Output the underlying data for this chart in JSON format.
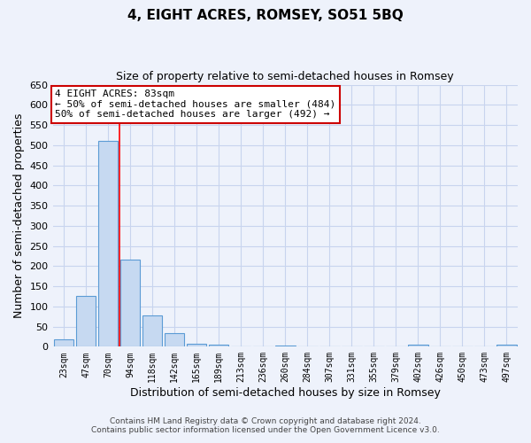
{
  "title": "4, EIGHT ACRES, ROMSEY, SO51 5BQ",
  "subtitle": "Size of property relative to semi-detached houses in Romsey",
  "xlabel": "Distribution of semi-detached houses by size in Romsey",
  "ylabel": "Number of semi-detached properties",
  "bin_labels": [
    "23sqm",
    "47sqm",
    "70sqm",
    "94sqm",
    "118sqm",
    "142sqm",
    "165sqm",
    "189sqm",
    "213sqm",
    "236sqm",
    "260sqm",
    "284sqm",
    "307sqm",
    "331sqm",
    "355sqm",
    "379sqm",
    "402sqm",
    "426sqm",
    "450sqm",
    "473sqm",
    "497sqm"
  ],
  "bin_values": [
    18,
    127,
    510,
    215,
    78,
    33,
    8,
    5,
    0,
    0,
    3,
    0,
    0,
    0,
    0,
    0,
    5,
    0,
    0,
    0,
    5
  ],
  "bar_color": "#c6d9f1",
  "bar_edge_color": "#5b9bd5",
  "red_line_x": 2.5,
  "property_size": "83sqm",
  "property_name": "4 EIGHT ACRES",
  "smaller_count": 484,
  "larger_count": 492,
  "ylim": [
    0,
    650
  ],
  "yticks": [
    0,
    50,
    100,
    150,
    200,
    250,
    300,
    350,
    400,
    450,
    500,
    550,
    600,
    650
  ],
  "annotation_box_color": "#ffffff",
  "annotation_box_edge_color": "#cc0000",
  "footer_line1": "Contains HM Land Registry data © Crown copyright and database right 2024.",
  "footer_line2": "Contains public sector information licensed under the Open Government Licence v3.0.",
  "background_color": "#eef2fb",
  "grid_color": "#c8d4ee"
}
